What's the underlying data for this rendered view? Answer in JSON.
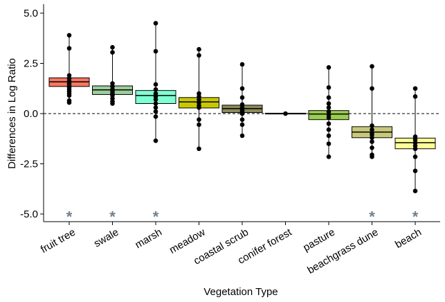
{
  "chart_data": {
    "type": "box",
    "xlabel": "Vegetation Type",
    "ylabel": "Differences in Log Ratio",
    "ylim": [
      -5.3,
      5.5
    ],
    "yticks": [
      5.0,
      2.5,
      0.0,
      -2.5,
      -5.0
    ],
    "ytick_labels": [
      "5.0",
      "2.5",
      "0.0",
      "-2.5",
      "-5.0"
    ],
    "reference_line": 0,
    "grid": false,
    "categories": [
      "fruit tree",
      "swale",
      "marsh",
      "meadow",
      "coastal scrub",
      "conifer forest",
      "pasture",
      "beachgrass dune",
      "beach"
    ],
    "boxes": [
      {
        "category": "fruit tree",
        "color": "#f8765f",
        "q1": 1.35,
        "median": 1.58,
        "q3": 1.78,
        "whisker_low": 0.55,
        "whisker_high": 3.9,
        "points": [
          3.9,
          3.25,
          1.9,
          1.75,
          1.6,
          1.5,
          1.4,
          1.3,
          1.2,
          1.1,
          1.0,
          0.9,
          0.65,
          0.55
        ],
        "significant": true
      },
      {
        "category": "swale",
        "color": "#9ccc9c",
        "q1": 0.95,
        "median": 1.18,
        "q3": 1.38,
        "whisker_low": 0.5,
        "whisker_high": 3.3,
        "points": [
          3.3,
          3.05,
          1.5,
          1.35,
          1.2,
          1.1,
          1.0,
          0.9,
          0.75,
          0.6,
          0.5
        ],
        "significant": true
      },
      {
        "category": "marsh",
        "color": "#7fffd4",
        "q1": 0.5,
        "median": 0.9,
        "q3": 1.15,
        "whisker_low": -1.35,
        "whisker_high": 4.5,
        "points": [
          4.5,
          3.1,
          1.45,
          1.2,
          1.0,
          0.85,
          0.7,
          0.5,
          0.3,
          0.1,
          -0.15,
          -1.35
        ],
        "significant": true
      },
      {
        "category": "meadow",
        "color": "#c8c800",
        "q1": 0.28,
        "median": 0.58,
        "q3": 0.8,
        "whisker_low": -1.75,
        "whisker_high": 3.2,
        "points": [
          3.2,
          2.9,
          1.0,
          0.85,
          0.7,
          0.55,
          0.4,
          0.3,
          -0.3,
          -0.55,
          -1.75
        ],
        "significant": false
      },
      {
        "category": "coastal scrub",
        "color": "#8b8b5a",
        "q1": 0.05,
        "median": 0.25,
        "q3": 0.42,
        "whisker_low": -1.1,
        "whisker_high": 2.45,
        "points": [
          2.45,
          1.25,
          0.8,
          0.45,
          0.3,
          0.2,
          0.1,
          0.0,
          -0.3,
          -0.55,
          -1.1
        ],
        "significant": false
      },
      {
        "category": "conifer forest",
        "color": "#2f4f4f",
        "q1": -0.02,
        "median": 0.0,
        "q3": 0.02,
        "whisker_low": -0.02,
        "whisker_high": 0.02,
        "points": [
          0.0
        ],
        "significant": false
      },
      {
        "category": "pasture",
        "color": "#9acd50",
        "q1": -0.3,
        "median": -0.02,
        "q3": 0.15,
        "whisker_low": -2.15,
        "whisker_high": 2.3,
        "points": [
          2.3,
          1.3,
          0.8,
          0.5,
          0.3,
          0.1,
          -0.05,
          -0.2,
          -0.5,
          -0.8,
          -1.1,
          -1.5,
          -2.15
        ],
        "significant": false
      },
      {
        "category": "beachgrass dune",
        "color": "#c8c87d",
        "q1": -1.2,
        "median": -0.92,
        "q3": -0.65,
        "whisker_low": -2.15,
        "whisker_high": 2.35,
        "points": [
          2.35,
          1.25,
          -0.6,
          -0.8,
          -0.95,
          -1.05,
          -1.2,
          -1.4,
          -1.7,
          -2.05,
          -2.15
        ],
        "significant": true
      },
      {
        "category": "beach",
        "color": "#ffff99",
        "q1": -1.75,
        "median": -1.45,
        "q3": -1.22,
        "whisker_low": -3.85,
        "whisker_high": 1.25,
        "points": [
          1.25,
          0.85,
          -1.15,
          -1.3,
          -1.45,
          -1.6,
          -1.75,
          -2.15,
          -2.85,
          -3.85
        ],
        "significant": true
      }
    ],
    "significance_marker": "*",
    "significance_y": -4.95
  }
}
